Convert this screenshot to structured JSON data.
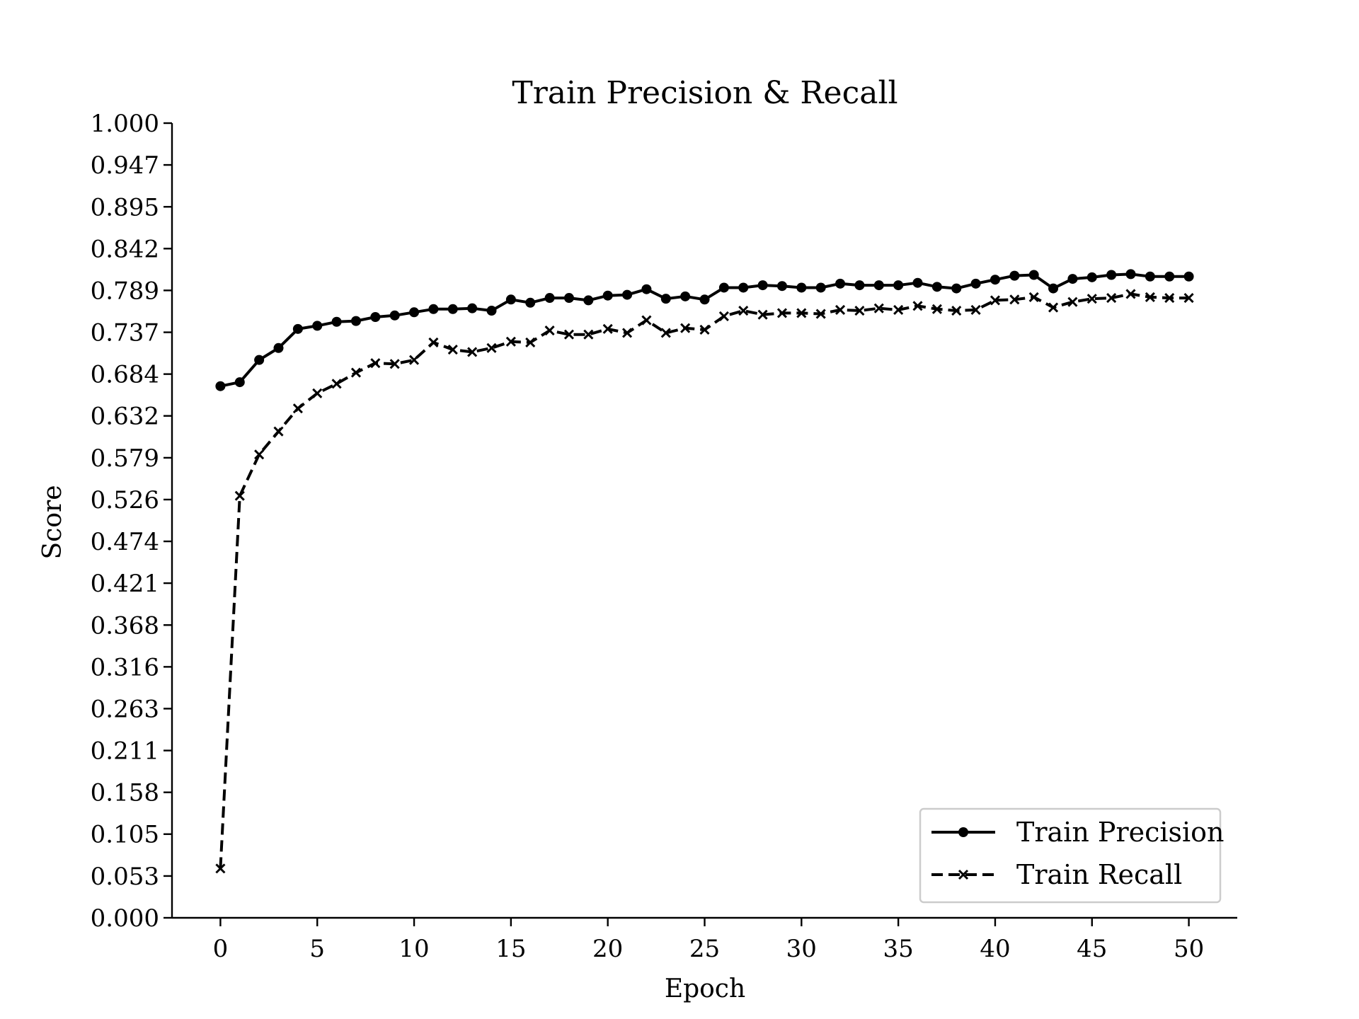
{
  "chart_data": {
    "type": "line",
    "title": "Train Precision & Recall",
    "xlabel": "Epoch",
    "ylabel": "Score",
    "xlim": [
      -2.5,
      52.5
    ],
    "ylim": [
      0,
      1
    ],
    "xticks": [
      0,
      5,
      10,
      15,
      20,
      25,
      30,
      35,
      40,
      45,
      50
    ],
    "xtick_labels": [
      "0",
      "5",
      "10",
      "15",
      "20",
      "25",
      "30",
      "35",
      "40",
      "45",
      "50"
    ],
    "yticks": [
      0,
      0.0526,
      0.1053,
      0.1579,
      0.2105,
      0.2632,
      0.3158,
      0.3684,
      0.4211,
      0.4737,
      0.5263,
      0.5789,
      0.6316,
      0.6842,
      0.7368,
      0.7895,
      0.8421,
      0.8947,
      0.9474,
      1
    ],
    "ytick_labels": [
      "0.000",
      "0.053",
      "0.105",
      "0.158",
      "0.211",
      "0.263",
      "0.316",
      "0.368",
      "0.421",
      "0.474",
      "0.526",
      "0.579",
      "0.632",
      "0.684",
      "0.737",
      "0.789",
      "0.842",
      "0.895",
      "0.947",
      "1.000"
    ],
    "grid": false,
    "legend_position": "bottom-right",
    "x": [
      0,
      1,
      2,
      3,
      4,
      5,
      6,
      7,
      8,
      9,
      10,
      11,
      12,
      13,
      14,
      15,
      16,
      17,
      18,
      19,
      20,
      21,
      22,
      23,
      24,
      25,
      26,
      27,
      28,
      29,
      30,
      31,
      32,
      33,
      34,
      35,
      36,
      37,
      38,
      39,
      40,
      41,
      42,
      43,
      44,
      45,
      46,
      47,
      48,
      49,
      50
    ],
    "series": [
      {
        "name": "Train Precision",
        "line_style": "solid",
        "marker": "circle",
        "color": "#000000",
        "values": [
          0.669,
          0.674,
          0.702,
          0.717,
          0.741,
          0.745,
          0.75,
          0.751,
          0.756,
          0.758,
          0.762,
          0.766,
          0.766,
          0.767,
          0.764,
          0.778,
          0.774,
          0.78,
          0.78,
          0.777,
          0.783,
          0.784,
          0.791,
          0.779,
          0.782,
          0.778,
          0.793,
          0.793,
          0.796,
          0.795,
          0.793,
          0.793,
          0.798,
          0.796,
          0.796,
          0.796,
          0.799,
          0.794,
          0.792,
          0.798,
          0.803,
          0.808,
          0.809,
          0.792,
          0.804,
          0.806,
          0.809,
          0.81,
          0.807,
          0.807,
          0.807
        ]
      },
      {
        "name": "Train Recall",
        "line_style": "dashed",
        "marker": "x",
        "color": "#000000",
        "values": [
          0.062,
          0.531,
          0.583,
          0.612,
          0.641,
          0.66,
          0.672,
          0.686,
          0.698,
          0.697,
          0.702,
          0.724,
          0.715,
          0.712,
          0.717,
          0.725,
          0.724,
          0.739,
          0.734,
          0.734,
          0.741,
          0.736,
          0.752,
          0.736,
          0.742,
          0.74,
          0.757,
          0.764,
          0.759,
          0.761,
          0.761,
          0.76,
          0.765,
          0.764,
          0.767,
          0.765,
          0.77,
          0.766,
          0.764,
          0.765,
          0.777,
          0.778,
          0.781,
          0.768,
          0.775,
          0.779,
          0.78,
          0.785,
          0.781,
          0.78,
          0.78
        ]
      }
    ]
  }
}
